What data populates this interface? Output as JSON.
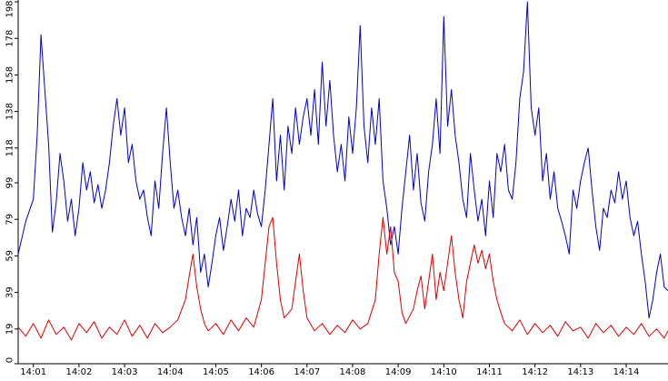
{
  "chart_data": {
    "type": "line",
    "title": "",
    "xlabel": "",
    "ylabel": "",
    "x_unit": "minutes",
    "x_range": [
      "14:00:40",
      "14:14:55"
    ],
    "ylim": [
      0,
      198
    ],
    "yticks": [
      0,
      19,
      39,
      59,
      79,
      99,
      118,
      138,
      158,
      178,
      198
    ],
    "xticks": [
      "14:01",
      "14:02",
      "14:03",
      "14:04",
      "14:05",
      "14:06",
      "14:07",
      "14:08",
      "14:09",
      "14:10",
      "14:11",
      "14:12",
      "14:13",
      "14:14"
    ],
    "grid": false,
    "legend": "none",
    "series": [
      {
        "color": "#0000cc",
        "points": [
          [
            "14:00:40",
            60
          ],
          [
            "14:00:50",
            78
          ],
          [
            "14:01:00",
            90
          ],
          [
            "14:01:05",
            125
          ],
          [
            "14:01:10",
            180
          ],
          [
            "14:01:15",
            150
          ],
          [
            "14:01:20",
            120
          ],
          [
            "14:01:25",
            72
          ],
          [
            "14:01:30",
            88
          ],
          [
            "14:01:35",
            115
          ],
          [
            "14:01:40",
            100
          ],
          [
            "14:01:45",
            78
          ],
          [
            "14:01:50",
            90
          ],
          [
            "14:01:55",
            70
          ],
          [
            "14:02:00",
            85
          ],
          [
            "14:02:05",
            110
          ],
          [
            "14:02:10",
            95
          ],
          [
            "14:02:15",
            105
          ],
          [
            "14:02:20",
            88
          ],
          [
            "14:02:25",
            98
          ],
          [
            "14:02:30",
            85
          ],
          [
            "14:02:35",
            95
          ],
          [
            "14:02:40",
            110
          ],
          [
            "14:02:45",
            130
          ],
          [
            "14:02:50",
            145
          ],
          [
            "14:02:55",
            125
          ],
          [
            "14:03:00",
            140
          ],
          [
            "14:03:05",
            110
          ],
          [
            "14:03:10",
            120
          ],
          [
            "14:03:15",
            100
          ],
          [
            "14:03:20",
            90
          ],
          [
            "14:03:25",
            95
          ],
          [
            "14:03:30",
            80
          ],
          [
            "14:03:35",
            70
          ],
          [
            "14:03:40",
            100
          ],
          [
            "14:03:45",
            85
          ],
          [
            "14:03:50",
            115
          ],
          [
            "14:03:55",
            140
          ],
          [
            "14:04:00",
            110
          ],
          [
            "14:04:05",
            85
          ],
          [
            "14:04:10",
            95
          ],
          [
            "14:04:15",
            80
          ],
          [
            "14:04:20",
            70
          ],
          [
            "14:04:25",
            85
          ],
          [
            "14:04:30",
            65
          ],
          [
            "14:04:35",
            80
          ],
          [
            "14:04:40",
            50
          ],
          [
            "14:04:45",
            60
          ],
          [
            "14:04:50",
            42
          ],
          [
            "14:04:55",
            55
          ],
          [
            "14:05:00",
            70
          ],
          [
            "14:05:05",
            80
          ],
          [
            "14:05:10",
            62
          ],
          [
            "14:05:15",
            75
          ],
          [
            "14:05:20",
            90
          ],
          [
            "14:05:25",
            78
          ],
          [
            "14:05:30",
            95
          ],
          [
            "14:05:35",
            70
          ],
          [
            "14:05:40",
            85
          ],
          [
            "14:05:45",
            80
          ],
          [
            "14:05:50",
            95
          ],
          [
            "14:05:55",
            82
          ],
          [
            "14:06:00",
            75
          ],
          [
            "14:06:05",
            95
          ],
          [
            "14:06:10",
            120
          ],
          [
            "14:06:15",
            145
          ],
          [
            "14:06:20",
            100
          ],
          [
            "14:06:25",
            125
          ],
          [
            "14:06:30",
            95
          ],
          [
            "14:06:35",
            130
          ],
          [
            "14:06:40",
            115
          ],
          [
            "14:06:45",
            140
          ],
          [
            "14:06:50",
            120
          ],
          [
            "14:06:55",
            135
          ],
          [
            "14:07:00",
            145
          ],
          [
            "14:07:05",
            125
          ],
          [
            "14:07:10",
            150
          ],
          [
            "14:07:15",
            120
          ],
          [
            "14:07:20",
            165
          ],
          [
            "14:07:25",
            130
          ],
          [
            "14:07:30",
            155
          ],
          [
            "14:07:35",
            125
          ],
          [
            "14:07:40",
            105
          ],
          [
            "14:07:45",
            120
          ],
          [
            "14:07:50",
            100
          ],
          [
            "14:07:55",
            135
          ],
          [
            "14:08:00",
            115
          ],
          [
            "14:08:05",
            140
          ],
          [
            "14:08:10",
            185
          ],
          [
            "14:08:15",
            130
          ],
          [
            "14:08:20",
            110
          ],
          [
            "14:08:25",
            140
          ],
          [
            "14:08:30",
            120
          ],
          [
            "14:08:35",
            145
          ],
          [
            "14:08:40",
            100
          ],
          [
            "14:08:45",
            85
          ],
          [
            "14:08:50",
            65
          ],
          [
            "14:08:55",
            75
          ],
          [
            "14:09:00",
            60
          ],
          [
            "14:09:05",
            85
          ],
          [
            "14:09:10",
            105
          ],
          [
            "14:09:15",
            125
          ],
          [
            "14:09:20",
            95
          ],
          [
            "14:09:25",
            115
          ],
          [
            "14:09:30",
            88
          ],
          [
            "14:09:35",
            78
          ],
          [
            "14:09:40",
            105
          ],
          [
            "14:09:45",
            120
          ],
          [
            "14:09:50",
            145
          ],
          [
            "14:09:55",
            115
          ],
          [
            "14:10:00",
            190
          ],
          [
            "14:10:05",
            130
          ],
          [
            "14:10:10",
            150
          ],
          [
            "14:10:15",
            125
          ],
          [
            "14:10:20",
            110
          ],
          [
            "14:10:25",
            90
          ],
          [
            "14:10:30",
            80
          ],
          [
            "14:10:35",
            115
          ],
          [
            "14:10:40",
            95
          ],
          [
            "14:10:45",
            78
          ],
          [
            "14:10:50",
            90
          ],
          [
            "14:10:55",
            70
          ],
          [
            "14:11:00",
            100
          ],
          [
            "14:11:05",
            80
          ],
          [
            "14:11:10",
            115
          ],
          [
            "14:11:15",
            105
          ],
          [
            "14:11:20",
            120
          ],
          [
            "14:11:25",
            95
          ],
          [
            "14:11:30",
            90
          ],
          [
            "14:11:35",
            110
          ],
          [
            "14:11:40",
            145
          ],
          [
            "14:11:45",
            160
          ],
          [
            "14:11:50",
            198
          ],
          [
            "14:11:55",
            140
          ],
          [
            "14:12:00",
            125
          ],
          [
            "14:12:05",
            140
          ],
          [
            "14:12:10",
            100
          ],
          [
            "14:12:15",
            115
          ],
          [
            "14:12:20",
            90
          ],
          [
            "14:12:25",
            105
          ],
          [
            "14:12:30",
            85
          ],
          [
            "14:12:35",
            78
          ],
          [
            "14:12:40",
            70
          ],
          [
            "14:12:45",
            60
          ],
          [
            "14:12:50",
            95
          ],
          [
            "14:12:55",
            85
          ],
          [
            "14:13:00",
            100
          ],
          [
            "14:13:05",
            110
          ],
          [
            "14:13:10",
            118
          ],
          [
            "14:13:15",
            95
          ],
          [
            "14:13:20",
            75
          ],
          [
            "14:13:25",
            62
          ],
          [
            "14:13:30",
            85
          ],
          [
            "14:13:35",
            80
          ],
          [
            "14:13:40",
            95
          ],
          [
            "14:13:45",
            88
          ],
          [
            "14:13:50",
            105
          ],
          [
            "14:13:55",
            90
          ],
          [
            "14:14:00",
            100
          ],
          [
            "14:14:05",
            80
          ],
          [
            "14:14:10",
            70
          ],
          [
            "14:14:15",
            78
          ],
          [
            "14:14:20",
            60
          ],
          [
            "14:14:25",
            45
          ],
          [
            "14:14:30",
            25
          ],
          [
            "14:14:35",
            35
          ],
          [
            "14:14:40",
            50
          ],
          [
            "14:14:45",
            60
          ],
          [
            "14:14:50",
            42
          ],
          [
            "14:14:55",
            40
          ]
        ]
      },
      {
        "color": "#dd0000",
        "points": [
          [
            "14:00:40",
            20
          ],
          [
            "14:00:50",
            15
          ],
          [
            "14:01:00",
            22
          ],
          [
            "14:01:10",
            14
          ],
          [
            "14:01:20",
            24
          ],
          [
            "14:01:30",
            16
          ],
          [
            "14:01:40",
            20
          ],
          [
            "14:01:50",
            13
          ],
          [
            "14:02:00",
            22
          ],
          [
            "14:02:10",
            17
          ],
          [
            "14:02:20",
            23
          ],
          [
            "14:02:30",
            14
          ],
          [
            "14:02:40",
            20
          ],
          [
            "14:02:50",
            16
          ],
          [
            "14:03:00",
            24
          ],
          [
            "14:03:10",
            15
          ],
          [
            "14:03:20",
            21
          ],
          [
            "14:03:30",
            14
          ],
          [
            "14:03:40",
            22
          ],
          [
            "14:03:50",
            17
          ],
          [
            "14:04:00",
            20
          ],
          [
            "14:04:10",
            24
          ],
          [
            "14:04:20",
            35
          ],
          [
            "14:04:25",
            48
          ],
          [
            "14:04:30",
            60
          ],
          [
            "14:04:35",
            42
          ],
          [
            "14:04:40",
            30
          ],
          [
            "14:04:45",
            22
          ],
          [
            "14:04:50",
            18
          ],
          [
            "14:05:00",
            22
          ],
          [
            "14:05:10",
            16
          ],
          [
            "14:05:20",
            24
          ],
          [
            "14:05:30",
            18
          ],
          [
            "14:05:40",
            25
          ],
          [
            "14:05:50",
            20
          ],
          [
            "14:06:00",
            35
          ],
          [
            "14:06:05",
            55
          ],
          [
            "14:06:10",
            75
          ],
          [
            "14:06:15",
            80
          ],
          [
            "14:06:20",
            55
          ],
          [
            "14:06:25",
            35
          ],
          [
            "14:06:30",
            25
          ],
          [
            "14:06:40",
            30
          ],
          [
            "14:06:45",
            45
          ],
          [
            "14:06:50",
            60
          ],
          [
            "14:06:55",
            40
          ],
          [
            "14:07:00",
            25
          ],
          [
            "14:07:10",
            18
          ],
          [
            "14:07:20",
            22
          ],
          [
            "14:07:30",
            16
          ],
          [
            "14:07:40",
            21
          ],
          [
            "14:07:50",
            17
          ],
          [
            "14:08:00",
            24
          ],
          [
            "14:08:10",
            19
          ],
          [
            "14:08:20",
            22
          ],
          [
            "14:08:30",
            35
          ],
          [
            "14:08:35",
            60
          ],
          [
            "14:08:40",
            80
          ],
          [
            "14:08:45",
            60
          ],
          [
            "14:08:50",
            75
          ],
          [
            "14:08:55",
            50
          ],
          [
            "14:09:00",
            45
          ],
          [
            "14:09:05",
            28
          ],
          [
            "14:09:10",
            22
          ],
          [
            "14:09:20",
            30
          ],
          [
            "14:09:25",
            40
          ],
          [
            "14:09:30",
            48
          ],
          [
            "14:09:35",
            30
          ],
          [
            "14:09:40",
            45
          ],
          [
            "14:09:45",
            60
          ],
          [
            "14:09:50",
            35
          ],
          [
            "14:09:55",
            50
          ],
          [
            "14:10:00",
            40
          ],
          [
            "14:10:05",
            55
          ],
          [
            "14:10:10",
            70
          ],
          [
            "14:10:15",
            50
          ],
          [
            "14:10:20",
            35
          ],
          [
            "14:10:25",
            25
          ],
          [
            "14:10:30",
            45
          ],
          [
            "14:10:35",
            55
          ],
          [
            "14:10:40",
            65
          ],
          [
            "14:10:45",
            55
          ],
          [
            "14:10:50",
            62
          ],
          [
            "14:10:55",
            52
          ],
          [
            "14:11:00",
            60
          ],
          [
            "14:11:05",
            45
          ],
          [
            "14:11:10",
            35
          ],
          [
            "14:11:15",
            28
          ],
          [
            "14:11:20",
            22
          ],
          [
            "14:11:30",
            18
          ],
          [
            "14:11:40",
            24
          ],
          [
            "14:11:50",
            16
          ],
          [
            "14:12:00",
            22
          ],
          [
            "14:12:10",
            17
          ],
          [
            "14:12:20",
            21
          ],
          [
            "14:12:30",
            15
          ],
          [
            "14:12:40",
            23
          ],
          [
            "14:12:50",
            18
          ],
          [
            "14:13:00",
            20
          ],
          [
            "14:13:10",
            14
          ],
          [
            "14:13:20",
            22
          ],
          [
            "14:13:30",
            17
          ],
          [
            "14:13:40",
            21
          ],
          [
            "14:13:50",
            15
          ],
          [
            "14:14:00",
            20
          ],
          [
            "14:14:10",
            16
          ],
          [
            "14:14:20",
            22
          ],
          [
            "14:14:30",
            15
          ],
          [
            "14:14:40",
            19
          ],
          [
            "14:14:50",
            14
          ],
          [
            "14:14:55",
            18
          ]
        ]
      }
    ]
  }
}
